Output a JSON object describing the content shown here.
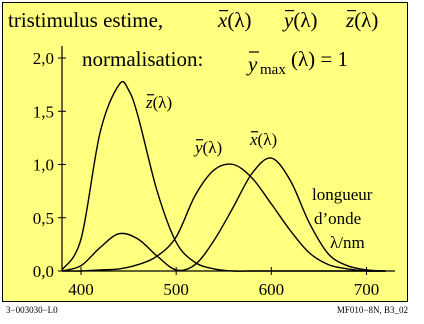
{
  "chart_data": {
    "type": "line",
    "title": "tristimulus estime,",
    "title_functions": [
      "x(λ)",
      "y(λ)",
      "z(λ)"
    ],
    "annotation": {
      "left": "normalisation:",
      "symbol": "y",
      "subscript": "max",
      "right": "(λ) = 1"
    },
    "xlabel": [
      "longueur",
      "d’onde",
      "λ/nm"
    ],
    "ylabel": "",
    "xlim": [
      380,
      730
    ],
    "ylim": [
      0,
      2.0
    ],
    "xticks": [
      400,
      500,
      600,
      700
    ],
    "yticks": [
      0,
      0.5,
      1.0,
      1.5,
      2.0
    ],
    "xtick_labels": [
      "400",
      "500",
      "600",
      "700"
    ],
    "ytick_labels": [
      "0,0",
      "0,5",
      "1,0",
      "1,5",
      "2,0"
    ],
    "grid": false,
    "series": [
      {
        "name": "x(λ)",
        "color": "#000000",
        "x": [
          380,
          400,
          420,
          440,
          460,
          480,
          500,
          520,
          540,
          560,
          580,
          600,
          620,
          640,
          660,
          680,
          700,
          720
        ],
        "y": [
          0.0,
          0.05,
          0.22,
          0.35,
          0.3,
          0.14,
          0.01,
          0.06,
          0.29,
          0.6,
          0.92,
          1.06,
          0.85,
          0.45,
          0.16,
          0.05,
          0.01,
          0.0
        ]
      },
      {
        "name": "y(λ)",
        "color": "#000000",
        "x": [
          380,
          400,
          420,
          440,
          460,
          480,
          500,
          520,
          540,
          560,
          580,
          600,
          620,
          640,
          660,
          680,
          700,
          720
        ],
        "y": [
          0.0,
          0.0,
          0.01,
          0.02,
          0.06,
          0.14,
          0.32,
          0.71,
          0.95,
          1.0,
          0.87,
          0.63,
          0.38,
          0.17,
          0.06,
          0.02,
          0.0,
          0.0
        ]
      },
      {
        "name": "z(λ)",
        "color": "#000000",
        "x": [
          380,
          400,
          420,
          440,
          450,
          460,
          480,
          500,
          520,
          540,
          560,
          580,
          600,
          620,
          640,
          660,
          680,
          700,
          720
        ],
        "y": [
          0.01,
          0.3,
          1.3,
          1.75,
          1.7,
          1.45,
          0.75,
          0.27,
          0.08,
          0.02,
          0.0,
          0.0,
          0.0,
          0.0,
          0.0,
          0.0,
          0.0,
          0.0,
          0.0
        ]
      }
    ],
    "curve_labels": [
      {
        "series": "z(λ)",
        "text": "z(λ)"
      },
      {
        "series": "y(λ)",
        "text": "y(λ)"
      },
      {
        "series": "x(λ)",
        "text": "x(λ)"
      }
    ]
  },
  "footer": {
    "left": "3−003030−L0",
    "right": "MF010−8N, B3_02"
  }
}
